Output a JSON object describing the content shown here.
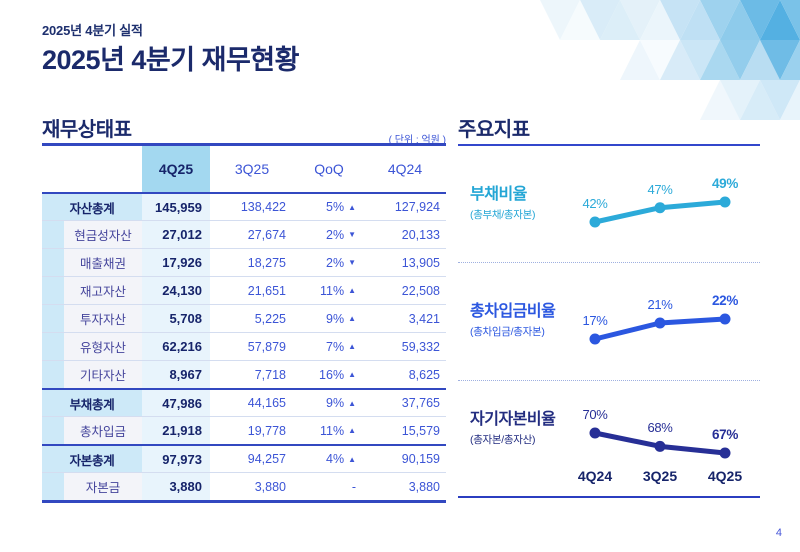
{
  "page": {
    "eyebrow": "2025년 4분기 실적",
    "title": "2025년 4분기 재무현황",
    "page_number": "4"
  },
  "colors": {
    "navy": "#16246a",
    "royal_blue": "#3c55d6",
    "table_line": "#3248c0",
    "header_cell_blue": "#a3d8f0",
    "highlight_col_blue": "#e8f4fc",
    "label_strip_blue": "#cde9f8",
    "teal": "#24a6d5",
    "chart_blue": "#2b57e0",
    "chart_navy": "#232d80"
  },
  "balance_sheet": {
    "title": "재무상태표",
    "unit_label": "( 단위 : 억원 )",
    "columns": [
      "",
      "4Q25",
      "3Q25",
      "QoQ",
      "4Q24"
    ],
    "rows": [
      {
        "label": "자산총계",
        "total": true,
        "q4_25": "145,959",
        "q3_25": "138,422",
        "qoq": "5%",
        "qoq_dir": "up",
        "q4_24": "127,924"
      },
      {
        "label": "현금성자산",
        "total": false,
        "q4_25": "27,012",
        "q3_25": "27,674",
        "qoq": "2%",
        "qoq_dir": "down",
        "q4_24": "20,133"
      },
      {
        "label": "매출채권",
        "total": false,
        "q4_25": "17,926",
        "q3_25": "18,275",
        "qoq": "2%",
        "qoq_dir": "down",
        "q4_24": "13,905"
      },
      {
        "label": "재고자산",
        "total": false,
        "q4_25": "24,130",
        "q3_25": "21,651",
        "qoq": "11%",
        "qoq_dir": "up",
        "q4_24": "22,508"
      },
      {
        "label": "투자자산",
        "total": false,
        "q4_25": "5,708",
        "q3_25": "5,225",
        "qoq": "9%",
        "qoq_dir": "up",
        "q4_24": "3,421"
      },
      {
        "label": "유형자산",
        "total": false,
        "q4_25": "62,216",
        "q3_25": "57,879",
        "qoq": "7%",
        "qoq_dir": "up",
        "q4_24": "59,332"
      },
      {
        "label": "기타자산",
        "total": false,
        "q4_25": "8,967",
        "q3_25": "7,718",
        "qoq": "16%",
        "qoq_dir": "up",
        "q4_24": "8,625"
      },
      {
        "label": "부채총계",
        "total": true,
        "q4_25": "47,986",
        "q3_25": "44,165",
        "qoq": "9%",
        "qoq_dir": "up",
        "q4_24": "37,765"
      },
      {
        "label": "총차입금",
        "total": false,
        "q4_25": "21,918",
        "q3_25": "19,778",
        "qoq": "11%",
        "qoq_dir": "up",
        "q4_24": "15,579"
      },
      {
        "label": "자본총계",
        "total": true,
        "q4_25": "97,973",
        "q3_25": "94,257",
        "qoq": "4%",
        "qoq_dir": "up",
        "q4_24": "90,159"
      },
      {
        "label": "자본금",
        "total": false,
        "q4_25": "3,880",
        "q3_25": "3,880",
        "qoq": "-",
        "qoq_dir": "none",
        "q4_24": "3,880"
      }
    ]
  },
  "indicators": {
    "title": "주요지표",
    "x_labels": [
      "4Q24",
      "3Q25",
      "4Q25"
    ]
  },
  "chart_data": [
    {
      "type": "line",
      "name": "부채비율",
      "subtitle": "(총부채/총자본)",
      "x": [
        "4Q24",
        "3Q25",
        "4Q25"
      ],
      "values": [
        42,
        47,
        49
      ],
      "unit": "%",
      "color": "#2caad9",
      "legend_position": "left",
      "grid": false
    },
    {
      "type": "line",
      "name": "총차입금비율",
      "subtitle": "(총차입금/총자본)",
      "x": [
        "4Q24",
        "3Q25",
        "4Q25"
      ],
      "values": [
        17,
        21,
        22
      ],
      "unit": "%",
      "color": "#2b57e0",
      "legend_position": "left",
      "grid": false
    },
    {
      "type": "line",
      "name": "자기자본비율",
      "subtitle": "(총자본/총자산)",
      "x": [
        "4Q24",
        "3Q25",
        "4Q25"
      ],
      "values": [
        70,
        68,
        67
      ],
      "unit": "%",
      "color": "#272f96",
      "legend_position": "left",
      "grid": false
    }
  ]
}
